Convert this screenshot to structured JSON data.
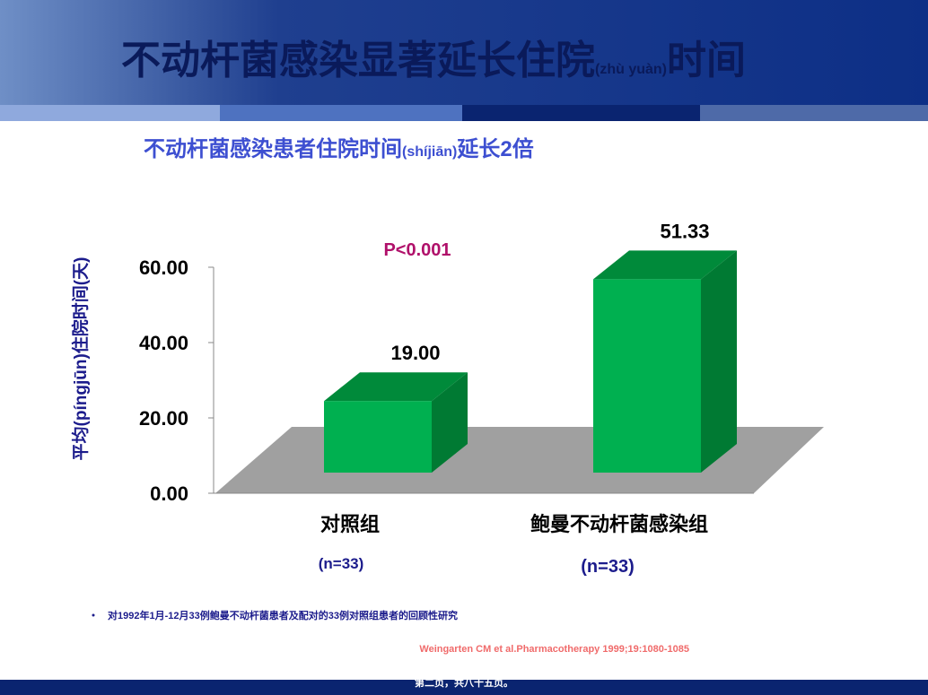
{
  "chart_data": {
    "type": "bar3d",
    "title_parts": [
      "不动杆菌感染显著延长住院",
      "(zhù yuàn)",
      "时间"
    ],
    "subtitle_parts": [
      "不动杆菌感染患者住院时间",
      "(shíjiān)",
      "延长2倍"
    ],
    "y_label": "平均(píngjūn)住院时间(天)",
    "categories": [
      "对照组",
      "鲍曼不动杆菌感染组"
    ],
    "category_notes": [
      "(n=33)",
      "(n=33)"
    ],
    "values": [
      19,
      51.33
    ],
    "value_labels": [
      "19.00",
      "51.33"
    ],
    "color": "#00b050",
    "ylim": [
      0,
      60
    ],
    "yticks": [
      {
        "value": 0,
        "label": "0.00"
      },
      {
        "value": 20,
        "label": "20.00"
      },
      {
        "value": 40,
        "label": "40.00"
      },
      {
        "value": 60,
        "label": "60.00"
      }
    ],
    "annotation": "P<0.001",
    "footnote": "对1992年1月-12月33例鲍曼不动杆菌患者及配对的33例对照组患者的回顾性研究",
    "citation": "Weingarten CM et al.Pharmacotherapy 1999;19:1080-1085",
    "footer": "第二页，共八十五页。"
  }
}
